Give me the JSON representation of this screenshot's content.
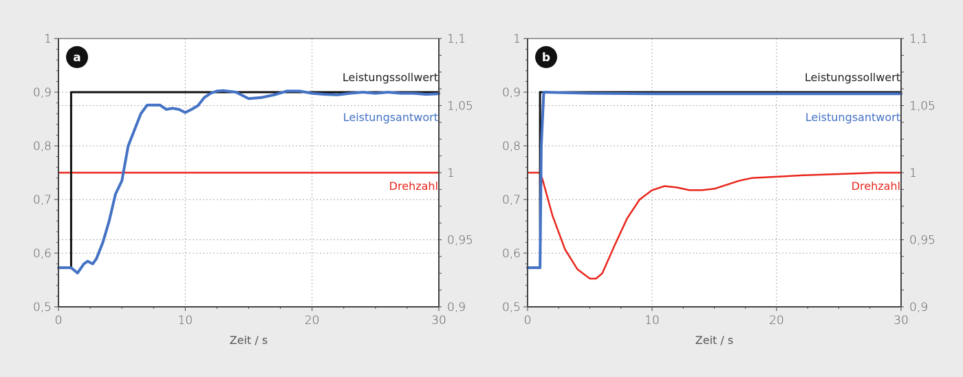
{
  "colors": {
    "background": "#ebebeb",
    "setpoint": "#111111",
    "response": "#4472c4",
    "speed": "#e8261c",
    "grid": "#aaaaaa",
    "axis": "#444444",
    "text": "#555555"
  },
  "chart_data": [
    {
      "panel": "a",
      "type": "line",
      "title": "",
      "xlabel": "Zeit / s",
      "ylabel_left": "",
      "ylabel_right": "",
      "xlim": [
        0,
        30
      ],
      "ylim_left": [
        0.5,
        1.0
      ],
      "ylim_right": [
        0.9,
        1.1
      ],
      "x_ticks": [
        "0",
        "10",
        "20",
        "30"
      ],
      "y_ticks_left": [
        "0,5",
        "0,6",
        "0,7",
        "0,8",
        "0,9",
        "1"
      ],
      "y_ticks_right": [
        "0,9",
        "0,95",
        "1",
        "1,05",
        "1,1"
      ],
      "grid": true,
      "series": [
        {
          "name": "Leistungssollwert",
          "axis": "left",
          "x": [
            0,
            1,
            1,
            30
          ],
          "y": [
            0.573,
            0.573,
            0.9,
            0.9
          ]
        },
        {
          "name": "Leistungsantwort",
          "axis": "left",
          "x": [
            0,
            1,
            1.5,
            2,
            2.3,
            2.7,
            3,
            3.5,
            4,
            4.5,
            5,
            5.5,
            6,
            6.5,
            7,
            7.5,
            8,
            8.5,
            9,
            9.5,
            10,
            10.5,
            11,
            11.5,
            12,
            12.5,
            13,
            14,
            15,
            16,
            17,
            18,
            19,
            20,
            21,
            22,
            23,
            24,
            25,
            26,
            27,
            28,
            29,
            30
          ],
          "y": [
            0.573,
            0.573,
            0.563,
            0.58,
            0.585,
            0.58,
            0.59,
            0.62,
            0.66,
            0.71,
            0.735,
            0.8,
            0.83,
            0.86,
            0.876,
            0.876,
            0.876,
            0.868,
            0.87,
            0.868,
            0.862,
            0.868,
            0.875,
            0.89,
            0.898,
            0.902,
            0.903,
            0.9,
            0.888,
            0.89,
            0.895,
            0.902,
            0.902,
            0.898,
            0.896,
            0.895,
            0.898,
            0.9,
            0.898,
            0.9,
            0.898,
            0.898,
            0.896,
            0.897
          ]
        },
        {
          "name": "Drehzahl",
          "axis": "right",
          "x": [
            0,
            30
          ],
          "y": [
            1.0,
            1.0
          ]
        }
      ],
      "annotations": [
        "Leistungssollwert",
        "Leistungsantwort",
        "Drehzahl"
      ]
    },
    {
      "panel": "b",
      "type": "line",
      "title": "",
      "xlabel": "Zeit / s",
      "xlim": [
        0,
        30
      ],
      "ylim_left": [
        0.5,
        1.0
      ],
      "ylim_right": [
        0.9,
        1.1
      ],
      "x_ticks": [
        "0",
        "10",
        "20",
        "30"
      ],
      "y_ticks_left": [
        "0,5",
        "0,6",
        "0,7",
        "0,8",
        "0,9",
        "1"
      ],
      "y_ticks_right": [
        "0,9",
        "0,95",
        "1",
        "1,05",
        "1,1"
      ],
      "grid": true,
      "series": [
        {
          "name": "Leistungssollwert",
          "axis": "left",
          "x": [
            0,
            1,
            1,
            30
          ],
          "y": [
            0.573,
            0.573,
            0.9,
            0.9
          ]
        },
        {
          "name": "Leistungsantwort",
          "axis": "left",
          "x": [
            0,
            1,
            1.1,
            1.3,
            5,
            10,
            20,
            30
          ],
          "y": [
            0.573,
            0.573,
            0.8,
            0.9,
            0.898,
            0.897,
            0.897,
            0.897
          ]
        },
        {
          "name": "Drehzahl",
          "axis": "right",
          "x": [
            0,
            1,
            1.2,
            2,
            3,
            4,
            5,
            5.5,
            6,
            7,
            8,
            9,
            10,
            11,
            12,
            13,
            14,
            15,
            16,
            17,
            18,
            20,
            22,
            25,
            28,
            30
          ],
          "y": [
            1.0,
            1.0,
            0.995,
            0.968,
            0.943,
            0.928,
            0.921,
            0.921,
            0.925,
            0.946,
            0.966,
            0.98,
            0.987,
            0.99,
            0.989,
            0.987,
            0.987,
            0.988,
            0.991,
            0.994,
            0.996,
            0.997,
            0.998,
            0.999,
            1.0,
            1.0
          ]
        }
      ],
      "annotations": [
        "Leistungssollwert",
        "Leistungsantwort",
        "Drehzahl"
      ]
    }
  ],
  "panels": [
    {
      "badge": "a",
      "xlabel": "Zeit / s",
      "x_ticks": [
        "0",
        "10",
        "20",
        "30"
      ],
      "y_left": [
        "1",
        "0,9",
        "0,8",
        "0,7",
        "0,6",
        "0,5"
      ],
      "y_right": [
        "1,1",
        "1,05",
        "1",
        "0,95",
        "0,9"
      ],
      "legend": {
        "setpoint": "Leistungssollwert",
        "response": "Leistungsantwort",
        "speed": "Drehzahl"
      }
    },
    {
      "badge": "b",
      "xlabel": "Zeit / s",
      "x_ticks": [
        "0",
        "10",
        "20",
        "30"
      ],
      "y_left": [
        "1",
        "0,9",
        "0,8",
        "0,7",
        "0,6",
        "0,5"
      ],
      "y_right": [
        "1,1",
        "1,05",
        "1",
        "0,95",
        "0,9"
      ],
      "legend": {
        "setpoint": "Leistungssollwert",
        "response": "Leistungsantwort",
        "speed": "Drehzahl"
      }
    }
  ]
}
